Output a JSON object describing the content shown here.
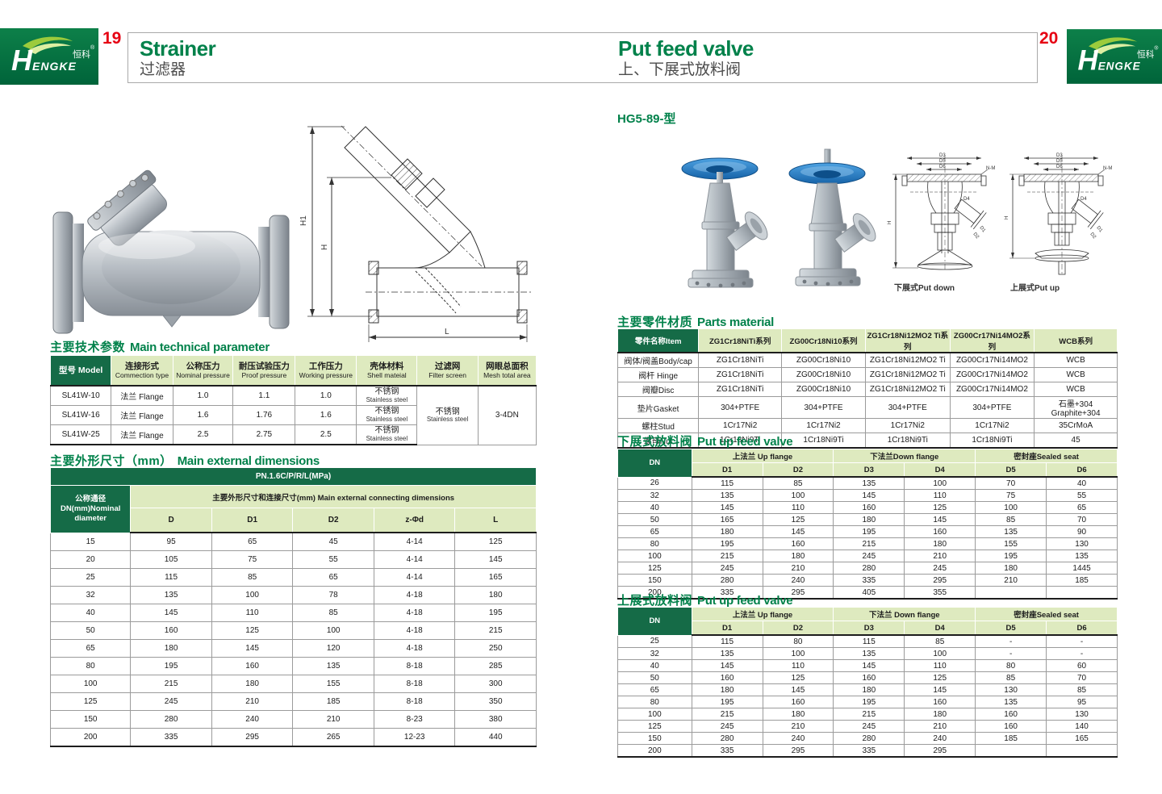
{
  "colors": {
    "dark_green": "#156B47",
    "light_green": "#DEEABF",
    "title_green": "#00814A",
    "page_red": "#E60012",
    "logo_green": "#0B7A44",
    "handwheel_blue": "#2B7FC4"
  },
  "brand": {
    "h": "H",
    "rest": "ENGKE",
    "cn": "恒科",
    "reg": "®"
  },
  "header": {
    "left": {
      "page_number": "19",
      "title_en": "Strainer",
      "title_zh": "过滤器"
    },
    "right": {
      "page_number": "20",
      "title_en": "Put feed valve",
      "title_zh": "上、下展式放料阀"
    }
  },
  "left_page": {
    "drawing_labels": {
      "h1": "H1",
      "h": "H",
      "l": "L"
    },
    "tech_params": {
      "title_zh": "主要技术参数",
      "title_en": "Main technical parameter",
      "headers": [
        {
          "zh": "型号 Model",
          "en": ""
        },
        {
          "zh": "连接形式",
          "en": "Commection type"
        },
        {
          "zh": "公称压力",
          "en": "Nominal pressure"
        },
        {
          "zh": "耐压试验压力",
          "en": "Proof pressure"
        },
        {
          "zh": "工作压力",
          "en": "Working pressure"
        },
        {
          "zh": "壳体材料",
          "en": "Shell mateial"
        },
        {
          "zh": "过滤网",
          "en": "Filter screen"
        },
        {
          "zh": "网眼总面积",
          "en": "Mesh total area"
        }
      ],
      "rows": [
        [
          "SL41W-10",
          "法兰 Flange",
          "1.0",
          "1.1",
          "1.0",
          [
            "不锈钢",
            "Stainless steel"
          ]
        ],
        [
          "SL41W-16",
          "法兰 Flange",
          "1.6",
          "1.76",
          "1.6",
          [
            "不锈钢",
            "Stainless steel"
          ]
        ],
        [
          "SL41W-25",
          "法兰 Flange",
          "2.5",
          "2.75",
          "2.5",
          [
            "不锈钢",
            "Stainless steel"
          ]
        ]
      ],
      "filter_screen_merged": [
        "不锈钢",
        "Stainless steel"
      ],
      "mesh_total_area_merged": "3-4DN"
    },
    "dimensions": {
      "title_zh": "主要外形尺寸（mm）",
      "title_en": "Main external dimensions",
      "pn_header": "PN.1.6C/P/R/L(MPa)",
      "dn_header_lines": [
        "公称通径",
        "DN(mm)Nominal",
        "diameter"
      ],
      "group_header": "主要外形尺寸和连接尺寸(mm) Main external connecting dimensions",
      "col_headers": [
        "D",
        "D1",
        "D2",
        "z-Φd",
        "L"
      ],
      "rows": [
        [
          "15",
          "95",
          "65",
          "45",
          "4-14",
          "125"
        ],
        [
          "20",
          "105",
          "75",
          "55",
          "4-14",
          "145"
        ],
        [
          "25",
          "115",
          "85",
          "65",
          "4-14",
          "165"
        ],
        [
          "32",
          "135",
          "100",
          "78",
          "4-18",
          "180"
        ],
        [
          "40",
          "145",
          "110",
          "85",
          "4-18",
          "195"
        ],
        [
          "50",
          "160",
          "125",
          "100",
          "4-18",
          "215"
        ],
        [
          "65",
          "180",
          "145",
          "120",
          "4-18",
          "250"
        ],
        [
          "80",
          "195",
          "160",
          "135",
          "8-18",
          "285"
        ],
        [
          "100",
          "215",
          "180",
          "155",
          "8-18",
          "300"
        ],
        [
          "125",
          "245",
          "210",
          "185",
          "8-18",
          "350"
        ],
        [
          "150",
          "280",
          "240",
          "210",
          "8-23",
          "380"
        ],
        [
          "200",
          "335",
          "295",
          "265",
          "12-23",
          "440"
        ]
      ]
    }
  },
  "right_page": {
    "model_label": "HG5-89-型",
    "drawing_labels": {
      "d3": "D3",
      "d5": "D5",
      "d6": "D6",
      "nm": "N-M",
      "d4": "D4",
      "h": "H",
      "d1": "D1",
      "d2": "D2"
    },
    "drawing_captions": {
      "down": "下展式Put down",
      "up": "上展式Put up"
    },
    "parts_material": {
      "title_zh": "主要零件材质",
      "title_en": "Parts material",
      "headers": [
        "零件名称Item",
        "ZG1Cr18NiTi系列",
        "ZG00Cr18Ni10系列",
        "ZG1Cr18Ni12MO2 Ti系列",
        "ZG00Cr17Ni14MO2系列",
        "WCB系列"
      ],
      "rows": [
        [
          "阀体/阀盖Body/cap",
          "ZG1Cr18NiTi",
          "ZG00Cr18Ni10",
          "ZG1Cr18Ni12MO2 Ti",
          "ZG00Cr17Ni14MO2",
          "WCB"
        ],
        [
          "阀杆 Hinge",
          "ZG1Cr18NiTi",
          "ZG00Cr18Ni10",
          "ZG1Cr18Ni12MO2 Ti",
          "ZG00Cr17Ni14MO2",
          "WCB"
        ],
        [
          "阀瓣Disc",
          "ZG1Cr18NiTi",
          "ZG00Cr18Ni10",
          "ZG1Cr18Ni12MO2 Ti",
          "ZG00Cr17Ni14MO2",
          "WCB"
        ],
        [
          "垫片Gasket",
          "304+PTFE",
          "304+PTFE",
          "304+PTFE",
          "304+PTFE",
          "石墨+304 Graphite+304"
        ],
        [
          "螺柱Stud",
          "1Cr17Ni2",
          "1Cr17Ni2",
          "1Cr17Ni2",
          "1Cr17Ni2",
          "35CrMoA"
        ],
        [
          "螺母Nut",
          "1Cr18Ni9Ti",
          "1Cr18Ni9Ti",
          "1Cr18Ni9Ti",
          "1Cr18Ni9Ti",
          "45"
        ]
      ]
    },
    "put_down": {
      "title_zh": "下展式放料阀",
      "title_en": "Put up feed valve",
      "dn_label": "DN",
      "group_headers": [
        "上法兰 Up flange",
        "下法兰Down flange",
        "密封座Sealed seat"
      ],
      "col_headers": [
        "D1",
        "D2",
        "D3",
        "D4",
        "D5",
        "D6"
      ],
      "rows": [
        [
          "26",
          "115",
          "85",
          "135",
          "100",
          "70",
          "40"
        ],
        [
          "32",
          "135",
          "100",
          "145",
          "110",
          "75",
          "55"
        ],
        [
          "40",
          "145",
          "110",
          "160",
          "125",
          "100",
          "65"
        ],
        [
          "50",
          "165",
          "125",
          "180",
          "145",
          "85",
          "70"
        ],
        [
          "65",
          "180",
          "145",
          "195",
          "160",
          "135",
          "90"
        ],
        [
          "80",
          "195",
          "160",
          "215",
          "180",
          "155",
          "130"
        ],
        [
          "100",
          "215",
          "180",
          "245",
          "210",
          "195",
          "135"
        ],
        [
          "125",
          "245",
          "210",
          "280",
          "245",
          "180",
          "1445"
        ],
        [
          "150",
          "280",
          "240",
          "335",
          "295",
          "210",
          "185"
        ],
        [
          "200",
          "335",
          "295",
          "405",
          "355",
          "",
          ""
        ]
      ]
    },
    "put_up": {
      "title_zh": "上展式放料阀",
      "title_en": "Put up feed valve",
      "dn_label": "DN",
      "group_headers": [
        "上法兰 Up flange",
        "下法兰 Down flange",
        "密封座Sealed seat"
      ],
      "col_headers": [
        "D1",
        "D2",
        "D3",
        "D4",
        "D5",
        "D6"
      ],
      "rows": [
        [
          "25",
          "115",
          "80",
          "115",
          "85",
          "-",
          "-"
        ],
        [
          "32",
          "135",
          "100",
          "135",
          "100",
          "-",
          "-"
        ],
        [
          "40",
          "145",
          "110",
          "145",
          "110",
          "80",
          "60"
        ],
        [
          "50",
          "160",
          "125",
          "160",
          "125",
          "85",
          "70"
        ],
        [
          "65",
          "180",
          "145",
          "180",
          "145",
          "130",
          "85"
        ],
        [
          "80",
          "195",
          "160",
          "195",
          "160",
          "135",
          "95"
        ],
        [
          "100",
          "215",
          "180",
          "215",
          "180",
          "160",
          "130"
        ],
        [
          "125",
          "245",
          "210",
          "245",
          "210",
          "160",
          "140"
        ],
        [
          "150",
          "280",
          "240",
          "280",
          "240",
          "185",
          "165"
        ],
        [
          "200",
          "335",
          "295",
          "335",
          "295",
          "",
          ""
        ]
      ]
    }
  }
}
